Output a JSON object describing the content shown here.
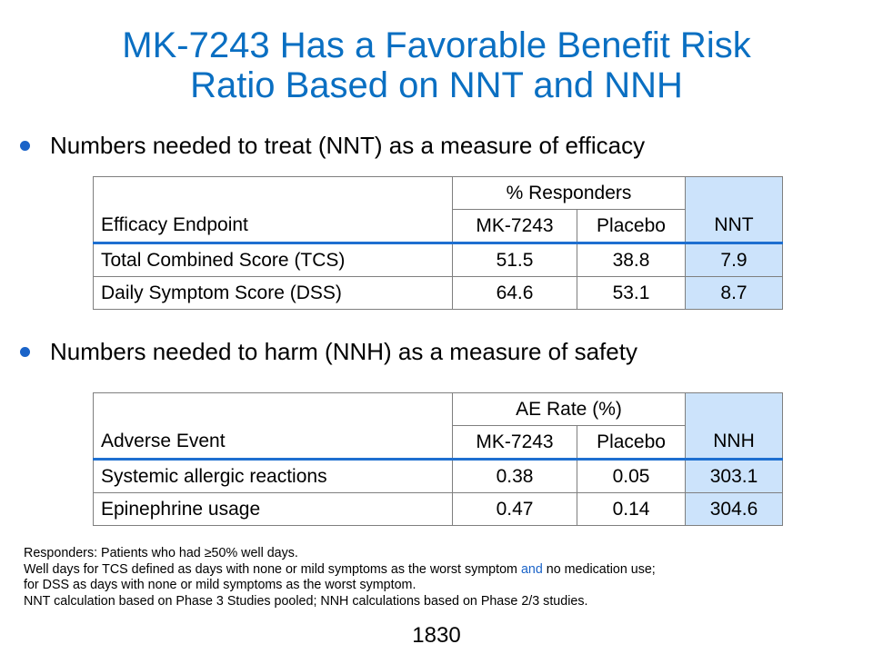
{
  "title": {
    "line1": "MK-7243 Has a Favorable Benefit Risk",
    "line2": "Ratio Based on NNT and NNH"
  },
  "bullets": {
    "efficacy": "Numbers needed to treat (NNT) as a measure of efficacy",
    "safety": "Numbers needed to harm (NNH) as a measure of safety"
  },
  "nnt_table": {
    "endpoint_header": "Efficacy Endpoint",
    "group_header": "% Responders",
    "col_drug": "MK-7243",
    "col_placebo": "Placebo",
    "col_ratio": "NNT",
    "rows": [
      {
        "label": "Total Combined Score (TCS)",
        "drug": "51.5",
        "placebo": "38.8",
        "ratio": "7.9"
      },
      {
        "label": "Daily Symptom Score (DSS)",
        "drug": "64.6",
        "placebo": "53.1",
        "ratio": "8.7"
      }
    ]
  },
  "nnh_table": {
    "endpoint_header": "Adverse Event",
    "group_header": "AE Rate (%)",
    "col_drug": "MK-7243",
    "col_placebo": "Placebo",
    "col_ratio": "NNH",
    "rows": [
      {
        "label": "Systemic allergic reactions",
        "drug": "0.38",
        "placebo": "0.05",
        "ratio": "303.1"
      },
      {
        "label": "Epinephrine usage",
        "drug": "0.47",
        "placebo": "0.14",
        "ratio": "304.6"
      }
    ]
  },
  "footnotes": {
    "line1": "Responders: Patients who had ≥50% well days.",
    "line2_a": "Well days for TCS defined as days with none or mild symptoms as the worst symptom ",
    "line2_and": "and",
    "line2_b": " no medication use;",
    "line3": "for DSS as days with none or mild symptoms as the worst symptom.",
    "line4": "NNT calculation based on Phase 3 Studies pooled; NNH calculations based on Phase 2/3 studies."
  },
  "page_number": "1830",
  "colors": {
    "title": "#0a6fc2",
    "bullet": "#1a63c8",
    "ratio_fill": "#cce3fb",
    "header_rule": "#1e6fd0"
  }
}
